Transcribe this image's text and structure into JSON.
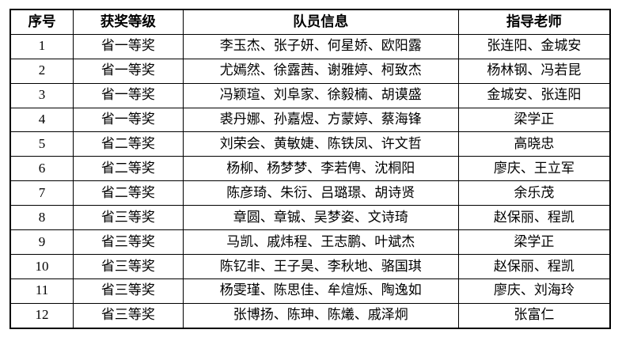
{
  "document": {
    "type": "awards-table"
  },
  "colors": {
    "border": "#000000",
    "text": "#000000",
    "background": "#ffffff"
  },
  "table": {
    "headers": [
      "序号",
      "获奖等级",
      "队员信息",
      "指导老师"
    ],
    "rows": [
      {
        "index": "1",
        "level": "省一等奖",
        "members": "李玉杰、张子妍、何星娇、欧阳露",
        "teachers": "张连阳、金城安"
      },
      {
        "index": "2",
        "level": "省一等奖",
        "members": "尤嫣然、徐露茜、谢雅婷、柯致杰",
        "teachers": "杨林钢、冯若昆"
      },
      {
        "index": "3",
        "level": "省一等奖",
        "members": "冯颖瑄、刘阜家、徐毅楠、胡谟盛",
        "teachers": "金城安、张连阳"
      },
      {
        "index": "4",
        "level": "省一等奖",
        "members": "裘丹娜、孙嘉煜、方蒙婷、蔡海锋",
        "teachers": "梁学正"
      },
      {
        "index": "5",
        "level": "省二等奖",
        "members": "刘荣会、黄敏婕、陈铁凤、许文哲",
        "teachers": "高晓忠"
      },
      {
        "index": "6",
        "level": "省二等奖",
        "members": "杨柳、杨梦梦、李若俜、沈桐阳",
        "teachers": "廖庆、王立军"
      },
      {
        "index": "7",
        "level": "省二等奖",
        "members": "陈彦琦、朱衍、吕璐璟、胡诗贤",
        "teachers": "余乐茂"
      },
      {
        "index": "8",
        "level": "省三等奖",
        "members": "章圆、章铖、吴梦姿、文诗琦",
        "teachers": "赵保丽、程凯"
      },
      {
        "index": "9",
        "level": "省三等奖",
        "members": "马凯、戚炜程、王志鹏、叶斌杰",
        "teachers": "梁学正"
      },
      {
        "index": "10",
        "level": "省三等奖",
        "members": "陈钇非、王子昊、李秋地、骆国琪",
        "teachers": "赵保丽、程凯"
      },
      {
        "index": "11",
        "level": "省三等奖",
        "members": "杨雯瑾、陈思佳、牟煊烁、陶逸如",
        "teachers": "廖庆、刘海玲"
      },
      {
        "index": "12",
        "level": "省三等奖",
        "members": "张博扬、陈珅、陈爔、戚泽炯",
        "teachers": "张富仁"
      }
    ]
  }
}
